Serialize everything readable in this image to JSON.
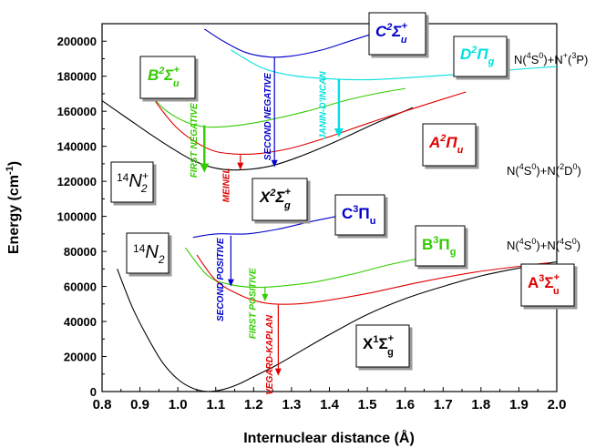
{
  "chart_data": {
    "type": "line",
    "xlabel": "Internuclear distance (Å)",
    "ylabel": "Energy (cm",
    "ylabel_sup": "-1",
    "ylabel_end": ")",
    "xlim": [
      0.8,
      2.0
    ],
    "ylim": [
      0,
      210000
    ],
    "x_ticks": [
      "0.8",
      "0.9",
      "1.0",
      "1.1",
      "1.2",
      "1.3",
      "1.4",
      "1.5",
      "1.6",
      "1.7",
      "1.8",
      "1.9",
      "2.0"
    ],
    "y_ticks": [
      "0",
      "20000",
      "40000",
      "60000",
      "80000",
      "100000",
      "120000",
      "140000",
      "160000",
      "180000",
      "200000"
    ],
    "grid": false,
    "curves": [
      {
        "color": "#000000",
        "points": [
          [
            0.84,
            70000
          ],
          [
            0.88,
            48000
          ],
          [
            0.92,
            31000
          ],
          [
            0.96,
            16500
          ],
          [
            1.0,
            7000
          ],
          [
            1.04,
            1800
          ],
          [
            1.08,
            0
          ],
          [
            1.12,
            1200
          ],
          [
            1.16,
            4200
          ],
          [
            1.2,
            8500
          ],
          [
            1.26,
            15000
          ],
          [
            1.32,
            22500
          ],
          [
            1.4,
            32500
          ],
          [
            1.5,
            44000
          ],
          [
            1.6,
            53000
          ],
          [
            1.7,
            60000
          ],
          [
            1.8,
            66000
          ],
          [
            1.9,
            70500
          ],
          [
            2.0,
            74000
          ]
        ]
      },
      {
        "color": "#0000cc",
        "points": [
          [
            1.04,
            88000
          ],
          [
            1.1,
            90000
          ],
          [
            1.18,
            90000
          ],
          [
            1.26,
            92500
          ],
          [
            1.34,
            96500
          ],
          [
            1.42,
            100000
          ]
        ]
      },
      {
        "color": "#33cc00",
        "points": [
          [
            1.02,
            82000
          ],
          [
            1.08,
            66000
          ],
          [
            1.14,
            61000
          ],
          [
            1.2,
            59500
          ],
          [
            1.26,
            60000
          ],
          [
            1.36,
            62500
          ],
          [
            1.46,
            67000
          ],
          [
            1.56,
            72500
          ],
          [
            1.66,
            77000
          ],
          [
            1.72,
            79500
          ]
        ]
      },
      {
        "color": "#e00000",
        "points": [
          [
            1.05,
            78000
          ],
          [
            1.1,
            63500
          ],
          [
            1.16,
            55500
          ],
          [
            1.22,
            51000
          ],
          [
            1.28,
            49800
          ],
          [
            1.36,
            51000
          ],
          [
            1.5,
            56000
          ],
          [
            1.64,
            62500
          ],
          [
            1.78,
            68000
          ],
          [
            1.92,
            72000
          ],
          [
            1.98,
            73500
          ]
        ]
      },
      {
        "color": "#000000",
        "points": [
          [
            0.8,
            166000
          ],
          [
            0.86,
            157000
          ],
          [
            0.92,
            148000
          ],
          [
            0.98,
            139500
          ],
          [
            1.04,
            132000
          ],
          [
            1.1,
            127500
          ],
          [
            1.16,
            126500
          ],
          [
            1.24,
            128500
          ],
          [
            1.32,
            134000
          ],
          [
            1.42,
            143000
          ],
          [
            1.52,
            153000
          ],
          [
            1.62,
            162000
          ]
        ]
      },
      {
        "color": "#33cc00",
        "points": [
          [
            0.91,
            175000
          ],
          [
            0.96,
            162000
          ],
          [
            1.02,
            154000
          ],
          [
            1.08,
            151000
          ],
          [
            1.16,
            152000
          ],
          [
            1.24,
            155000
          ],
          [
            1.34,
            160000
          ],
          [
            1.44,
            166000
          ],
          [
            1.52,
            170000
          ],
          [
            1.6,
            173000
          ]
        ]
      },
      {
        "color": "#e00000",
        "points": [
          [
            0.92,
            172000
          ],
          [
            0.96,
            160000
          ],
          [
            1.0,
            150000
          ],
          [
            1.05,
            142000
          ],
          [
            1.1,
            137000
          ],
          [
            1.16,
            135500
          ],
          [
            1.22,
            136000
          ],
          [
            1.3,
            139000
          ],
          [
            1.4,
            145500
          ],
          [
            1.5,
            153000
          ],
          [
            1.62,
            161500
          ],
          [
            1.76,
            171000
          ]
        ]
      },
      {
        "color": "#0000cc",
        "points": [
          [
            1.07,
            207000
          ],
          [
            1.12,
            200000
          ],
          [
            1.18,
            193500
          ],
          [
            1.24,
            191000
          ],
          [
            1.3,
            191500
          ],
          [
            1.38,
            195000
          ],
          [
            1.46,
            200500
          ],
          [
            1.54,
            206000
          ],
          [
            1.58,
            208500
          ]
        ]
      },
      {
        "color": "#00e0e0",
        "points": [
          [
            1.14,
            195000
          ],
          [
            1.22,
            185000
          ],
          [
            1.3,
            180500
          ],
          [
            1.4,
            178500
          ],
          [
            1.5,
            178000
          ],
          [
            1.6,
            179000
          ],
          [
            1.7,
            180500
          ],
          [
            1.8,
            182000
          ],
          [
            1.9,
            184000
          ],
          [
            2.0,
            185500
          ]
        ]
      }
    ],
    "transitions": [
      {
        "label": "FIRST NEGATIVE",
        "color": "#33cc00",
        "x": 1.07,
        "y_from": 152000,
        "y_to": 125000,
        "text_x": 1.05,
        "text_y": 122000,
        "thick": true
      },
      {
        "label": "MEINEL",
        "color": "#e00000",
        "x": 1.165,
        "y_from": 135000,
        "y_to": 126500,
        "text_x": 1.135,
        "text_y": 108000,
        "thick": false
      },
      {
        "label": "SECOND NEGATIVE",
        "color": "#0000cc",
        "x": 1.255,
        "y_from": 191000,
        "y_to": 128000,
        "text_x": 1.245,
        "text_y": 132000,
        "thick": false
      },
      {
        "label": "JANIN-D'INCAN",
        "color": "#00e0e0",
        "x": 1.425,
        "y_from": 178000,
        "y_to": 145000,
        "text_x": 1.39,
        "text_y": 144000,
        "thick": true
      },
      {
        "label": "SECOND POSITIVE",
        "color": "#0000cc",
        "x": 1.14,
        "y_from": 89000,
        "y_to": 60000,
        "text_x": 1.12,
        "text_y": 40000,
        "thick": false
      },
      {
        "label": "FIRST POSITIVE",
        "color": "#33cc00",
        "x": 1.23,
        "y_from": 59500,
        "y_to": 51500,
        "text_x": 1.205,
        "text_y": 30000,
        "thick": false
      },
      {
        "label": "VEGARD-KAPLAN",
        "color": "#e00000",
        "x": 1.265,
        "y_from": 49500,
        "y_to": 9000,
        "text_x": 1.25,
        "text_y": -2000,
        "thick": false
      }
    ]
  },
  "labels": {
    "N2_ion": {
      "mass": "14",
      "sym": "N",
      "sub": "2",
      "sup": "+"
    },
    "N2": {
      "mass": "14",
      "sym": "N",
      "sub": "2"
    },
    "X2Sg": {
      "b": "X",
      "sup1": "2",
      "g": "Σ",
      "sup2": "+",
      "sub": "g"
    },
    "B2Su": {
      "b": "B",
      "sup1": "2",
      "g": "Σ",
      "sup2": "+",
      "sub": "u"
    },
    "A2Pu": {
      "b": "A",
      "sup1": "2",
      "g": "Π",
      "sub": "u"
    },
    "C2Su": {
      "b": "C",
      "sup1": "2",
      "g": "Σ",
      "sup2": "+",
      "sub": "u"
    },
    "D2Pg": {
      "b": "D",
      "sup1": "2",
      "g": "Π",
      "sub": "g"
    },
    "C3Pu": {
      "b": "C",
      "sup1": "3",
      "g": "Π",
      "sub": "u"
    },
    "B3Pg": {
      "b": "B",
      "sup1": "3",
      "g": "Π",
      "sub": "g"
    },
    "A3Su": {
      "b": "A",
      "sup1": "3",
      "g": "Σ",
      "sup2": "+",
      "sub": "u"
    },
    "X1Sg": {
      "b": "X",
      "sup1": "1",
      "g": "Σ",
      "sup2": "+",
      "sub": "g"
    },
    "lim1": {
      "a": "N(",
      "s1": "4",
      "b": "S",
      "s2": "0",
      "c": ")+N",
      "s3": "+",
      "d": "(",
      "s4": "3",
      "e": "P)"
    },
    "lim2": {
      "a": "N(",
      "s1": "4",
      "b": "S",
      "s2": "0",
      "c": ")+N(",
      "s3": "2",
      "d": "D",
      "s4": "0",
      "e": ")"
    },
    "lim3": {
      "a": "N(",
      "s1": "4",
      "b": "S",
      "s2": "0",
      "c": ")+N(",
      "s3": "4",
      "d": "S",
      "s4": "0",
      "e": ")"
    }
  },
  "colors": {
    "black": "#000000",
    "blue": "#0000cc",
    "green": "#33cc00",
    "red": "#e00000",
    "cyan": "#00e0e0"
  }
}
